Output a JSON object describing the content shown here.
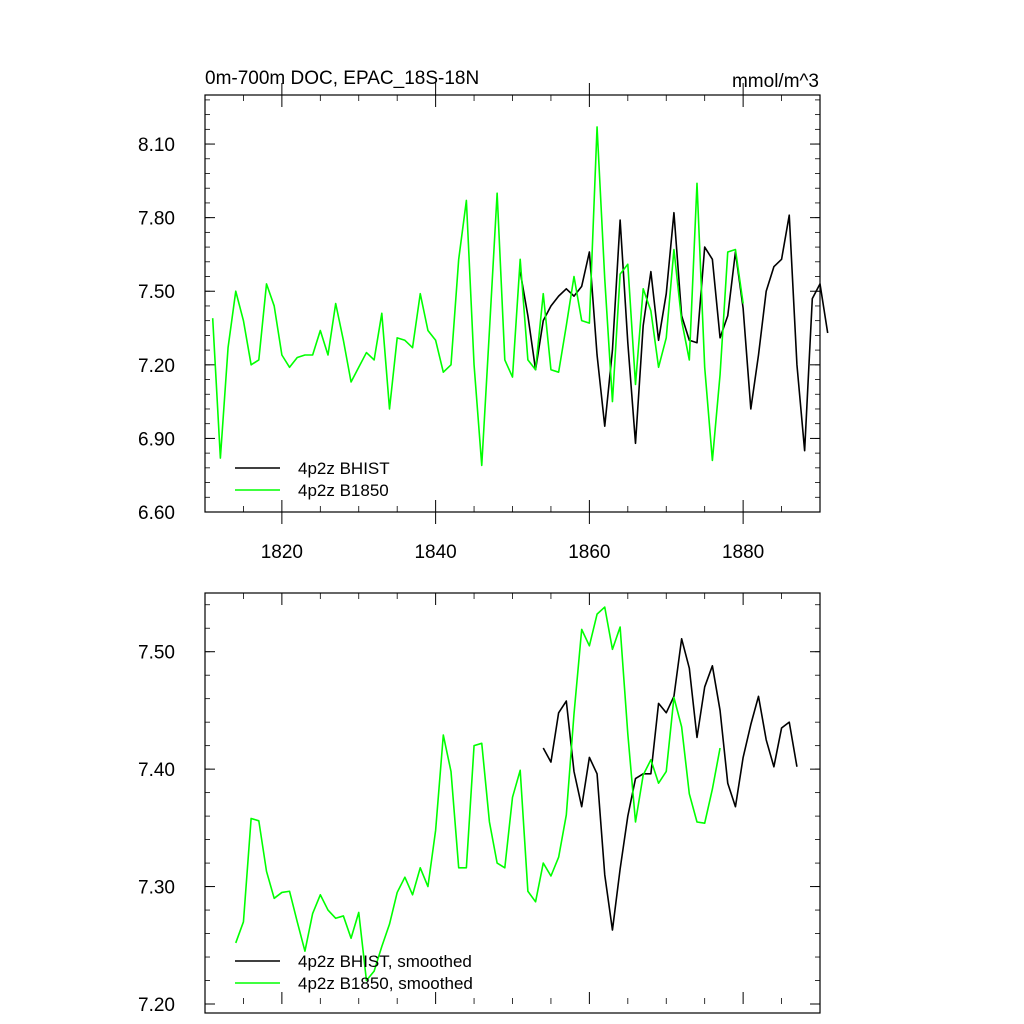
{
  "chart_data": [
    {
      "type": "line",
      "title": "0m-700m DOC, EPAC_18S-18N",
      "units": "mmol/m^3",
      "xlim": [
        1810,
        1890
      ],
      "ylim": [
        6.6,
        8.3
      ],
      "yticks": [
        "6.60",
        "6.90",
        "7.20",
        "7.50",
        "7.80",
        "8.10"
      ],
      "xticks": [
        "1820",
        "1840",
        "1860",
        "1880"
      ],
      "series": [
        {
          "name": "4p2z BHIST",
          "color": "#000000",
          "start": 1851,
          "values": [
            7.58,
            7.4,
            7.18,
            7.38,
            7.44,
            7.48,
            7.51,
            7.48,
            7.52,
            7.66,
            7.24,
            6.95,
            7.26,
            7.79,
            7.29,
            6.88,
            7.36,
            7.58,
            7.3,
            7.49,
            7.82,
            7.4,
            7.3,
            7.29,
            7.68,
            7.63,
            7.31,
            7.4,
            7.66,
            7.43,
            7.02,
            7.24,
            7.5,
            7.6,
            7.63,
            7.81,
            7.2,
            6.85,
            7.47,
            7.53,
            7.33
          ]
        },
        {
          "name": "4p2z B1850",
          "color": "#00ff00",
          "start": 1811,
          "values": [
            7.39,
            6.82,
            7.27,
            7.5,
            7.38,
            7.2,
            7.22,
            7.53,
            7.44,
            7.24,
            7.19,
            7.23,
            7.24,
            7.24,
            7.34,
            7.24,
            7.45,
            7.3,
            7.13,
            7.19,
            7.25,
            7.22,
            7.41,
            7.02,
            7.31,
            7.3,
            7.27,
            7.49,
            7.34,
            7.3,
            7.17,
            7.2,
            7.63,
            7.87,
            7.2,
            6.79,
            7.34,
            7.9,
            7.22,
            7.15,
            7.63,
            7.22,
            7.18,
            7.49,
            7.18,
            7.17,
            7.36,
            7.56,
            7.38,
            7.37,
            8.17,
            7.55,
            7.05,
            7.57,
            7.61,
            7.12,
            7.51,
            7.42,
            7.19,
            7.31,
            7.67,
            7.38,
            7.22,
            7.94,
            7.19,
            6.81,
            7.16,
            7.66,
            7.67,
            7.45
          ]
        }
      ]
    },
    {
      "type": "line",
      "xlim": [
        1810,
        1890
      ],
      "ylim": [
        7.2,
        7.55
      ],
      "yticks": [
        "7.20",
        "7.30",
        "7.40",
        "7.50"
      ],
      "series": [
        {
          "name": "4p2z BHIST, smoothed",
          "color": "#000000",
          "start": 1854,
          "values": [
            7.418,
            7.406,
            7.448,
            7.458,
            7.398,
            7.368,
            7.41,
            7.396,
            7.31,
            7.263,
            7.315,
            7.36,
            7.392,
            7.396,
            7.396,
            7.456,
            7.448,
            7.462,
            7.511,
            7.486,
            7.427,
            7.47,
            7.488,
            7.45,
            7.388,
            7.368,
            7.41,
            7.438,
            7.462,
            7.425,
            7.402,
            7.435,
            7.44,
            7.402
          ]
        },
        {
          "name": "4p2z B1850, smoothed",
          "color": "#00ff00",
          "start": 1814,
          "values": [
            7.252,
            7.27,
            7.358,
            7.356,
            7.313,
            7.29,
            7.295,
            7.296,
            7.27,
            7.245,
            7.277,
            7.293,
            7.28,
            7.273,
            7.275,
            7.256,
            7.278,
            7.22,
            7.228,
            7.249,
            7.268,
            7.295,
            7.308,
            7.293,
            7.316,
            7.3,
            7.348,
            7.429,
            7.398,
            7.316,
            7.316,
            7.42,
            7.422,
            7.355,
            7.32,
            7.316,
            7.376,
            7.399,
            7.296,
            7.287,
            7.32,
            7.309,
            7.325,
            7.361,
            7.447,
            7.519,
            7.505,
            7.532,
            7.538,
            7.502,
            7.521,
            7.43,
            7.355,
            7.395,
            7.408,
            7.388,
            7.398,
            7.461,
            7.436,
            7.379,
            7.355,
            7.354,
            7.383,
            7.418
          ]
        }
      ]
    }
  ]
}
